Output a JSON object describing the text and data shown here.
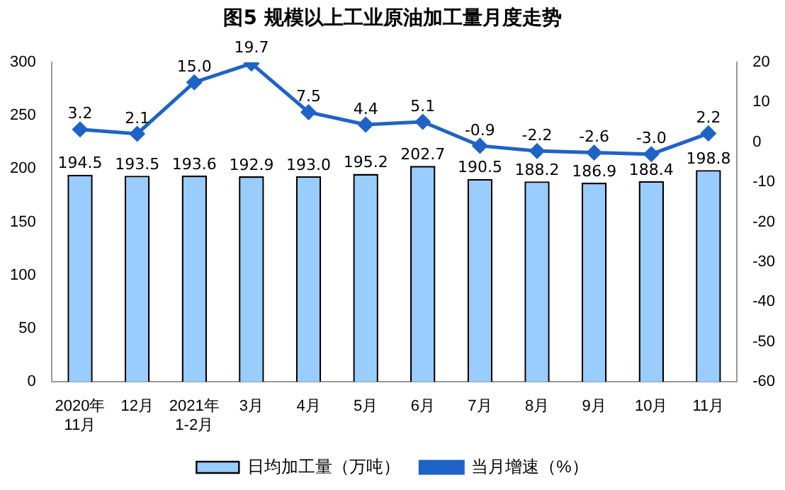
{
  "chart_data": {
    "type": "bar",
    "title": "图5  规模以上工业原油加工量月度走势",
    "categories": [
      "2020年\n11月",
      "12月",
      "2021年\n1-2月",
      "3月",
      "4月",
      "5月",
      "6月",
      "7月",
      "8月",
      "9月",
      "10月",
      "11月"
    ],
    "series": [
      {
        "name": "日均加工量（万吨）",
        "color": "#99ccff",
        "values": [
          194.5,
          193.5,
          193.6,
          192.9,
          193.0,
          195.2,
          202.7,
          190.5,
          188.2,
          186.9,
          188.4,
          198.8
        ],
        "value_labels": [
          "194.5",
          "193.5",
          "193.6",
          "192.9",
          "193.0",
          "195.2",
          "202.7",
          "190.5",
          "188.2",
          "186.9",
          "188.4",
          "198.8"
        ]
      },
      {
        "name": "当月增速（%）",
        "type": "line",
        "axis": "y2",
        "color": "#1f63c6",
        "marker": "diamond",
        "values": [
          3.2,
          2.1,
          15.0,
          19.7,
          7.5,
          4.4,
          5.1,
          -0.9,
          -2.2,
          -2.6,
          -3.0,
          2.2
        ],
        "value_labels": [
          "3.2",
          "2.1",
          "15.0",
          "19.7",
          "7.5",
          "4.4",
          "5.1",
          "-0.9",
          "-2.2",
          "-2.6",
          "-3.0",
          "2.2"
        ]
      }
    ],
    "ylim": [
      0,
      300
    ],
    "yticks": [
      0,
      50,
      100,
      150,
      200,
      250,
      300
    ],
    "y2lim": [
      -60,
      20
    ],
    "y2ticks": [
      -60,
      -50,
      -40,
      -30,
      -20,
      -10,
      0,
      10,
      20
    ],
    "grid": false,
    "legend": "bottom"
  }
}
